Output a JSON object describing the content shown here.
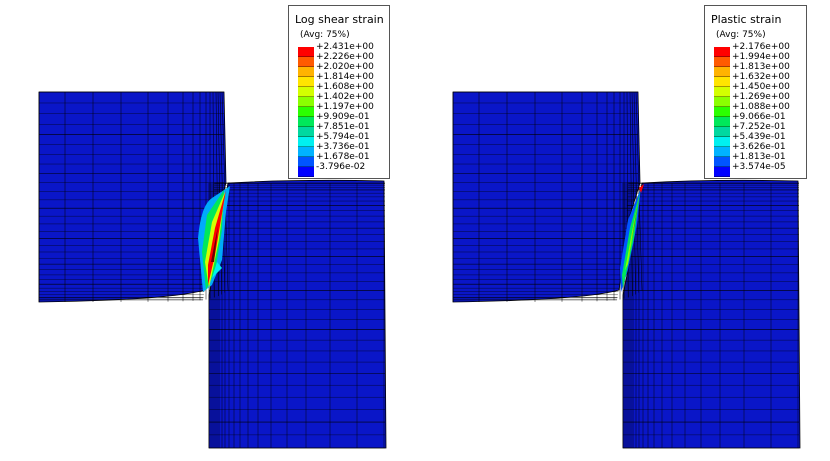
{
  "colors": {
    "mesh_fill": "#0a16c8",
    "mesh_line": "#000000",
    "band_scale": [
      "#ff0000",
      "#ff5a00",
      "#ffb300",
      "#ffe500",
      "#d4ff00",
      "#8cff00",
      "#2bff00",
      "#00e85a",
      "#00d8a0",
      "#00f0f0",
      "#00b3ff",
      "#0055ff",
      "#0000ff"
    ]
  },
  "legends": [
    {
      "title": "Log shear strain",
      "avg": "(Avg: 75%)",
      "values": [
        "+2.431e+00",
        "+2.226e+00",
        "+2.020e+00",
        "+1.814e+00",
        "+1.608e+00",
        "+1.402e+00",
        "+1.197e+00",
        "+9.909e-01",
        "+7.851e-01",
        "+5.794e-01",
        "+3.736e-01",
        "+1.678e-01",
        "-3.796e-02"
      ]
    },
    {
      "title": "Plastic strain",
      "avg": "(Avg: 75%)",
      "values": [
        "+2.176e+00",
        "+1.994e+00",
        "+1.813e+00",
        "+1.632e+00",
        "+1.450e+00",
        "+1.269e+00",
        "+1.088e+00",
        "+9.066e-01",
        "+7.252e-01",
        "+5.439e-01",
        "+3.626e-01",
        "+1.813e-01",
        "+3.574e-05"
      ]
    }
  ]
}
